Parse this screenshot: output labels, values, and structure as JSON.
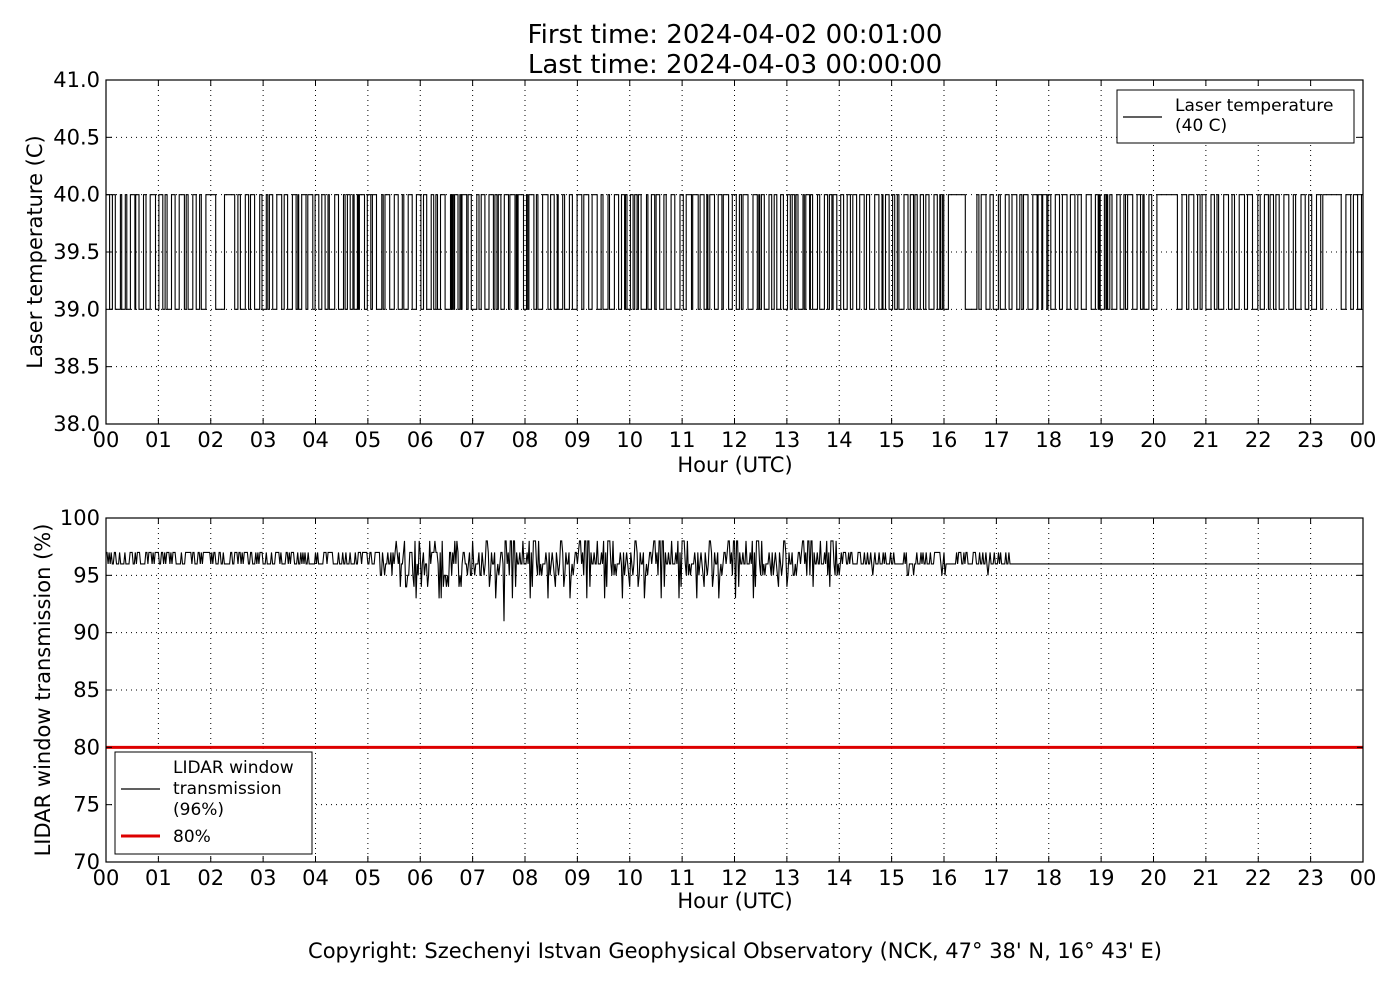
{
  "title": {
    "line1": "First time: 2024-04-02 00:01:00",
    "line2": "Last time: 2024-04-03 00:00:00"
  },
  "copyright": "Copyright: Szechenyi Istvan Geophysical Observatory (NCK, 47° 38' N, 16° 43' E)",
  "chart_data": [
    {
      "type": "line",
      "xlabel": "Hour (UTC)",
      "ylabel": "Laser temperature (C)",
      "xlim": [
        0,
        24
      ],
      "ylim": [
        38.0,
        41.0
      ],
      "x_ticks": [
        "00",
        "01",
        "02",
        "03",
        "04",
        "05",
        "06",
        "07",
        "08",
        "09",
        "10",
        "11",
        "12",
        "13",
        "14",
        "15",
        "16",
        "17",
        "18",
        "19",
        "20",
        "21",
        "22",
        "23",
        "00"
      ],
      "y_ticks": [
        "38.0",
        "38.5",
        "39.0",
        "39.5",
        "40.0",
        "40.5",
        "41.0"
      ],
      "y_tick_values": [
        38.0,
        38.5,
        39.0,
        39.5,
        40.0,
        40.5,
        41.0
      ],
      "grid": true,
      "legend_position": "top-right",
      "series": [
        {
          "name": "Laser temperature",
          "legend_label_lines": [
            "Laser temperature",
            "(40 C)"
          ],
          "color": "#000000",
          "values_allowed": [
            39.0,
            40.0
          ],
          "pattern": "rapid switching between 39.0 and 40.0 °C all day"
        }
      ]
    },
    {
      "type": "line",
      "xlabel": "Hour (UTC)",
      "ylabel": "LIDAR window transmission (%)",
      "xlim": [
        0,
        24
      ],
      "ylim": [
        70,
        100
      ],
      "x_ticks": [
        "00",
        "01",
        "02",
        "03",
        "04",
        "05",
        "06",
        "07",
        "08",
        "09",
        "10",
        "11",
        "12",
        "13",
        "14",
        "15",
        "16",
        "17",
        "18",
        "19",
        "20",
        "21",
        "22",
        "23",
        "00"
      ],
      "y_ticks": [
        "70",
        "75",
        "80",
        "85",
        "90",
        "95",
        "100"
      ],
      "y_tick_values": [
        70,
        75,
        80,
        85,
        90,
        95,
        100
      ],
      "grid": true,
      "legend_position": "lower-left",
      "series": [
        {
          "name": "LIDAR window transmission",
          "legend_label_lines": [
            "LIDAR window",
            "transmission",
            "(96%)"
          ],
          "color": "#000000",
          "pattern": "96-97 % until 05:30; 93-98 % noisy 05:30-14:00 with dip to 91 % at 07:36; 96-97 % until 17:24; flat 96 % after"
        },
        {
          "name": "80%",
          "legend_label_lines": [
            "80%"
          ],
          "color": "#dd0000",
          "value": 80
        }
      ]
    }
  ]
}
